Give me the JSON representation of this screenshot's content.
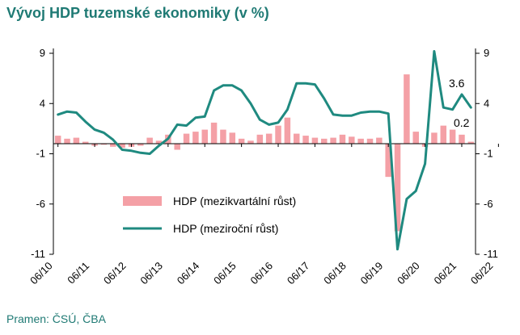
{
  "title": "Vývoj HDP tuzemské ekonomiky (v %)",
  "source": "Pramen: ČSÚ, ČBA",
  "colors": {
    "bars": "#f4a0a6",
    "line": "#1f8a80",
    "title": "#1f7a74",
    "axis": "#000000"
  },
  "chart_data": {
    "type": "bar+line",
    "x_tick_labels": [
      "06/10",
      "06/11",
      "06/12",
      "06/13",
      "06/14",
      "06/15",
      "06/16",
      "06/17",
      "06/18",
      "06/19",
      "06/20",
      "06/21",
      "06/22"
    ],
    "y_ticks": [
      "9",
      "4",
      "-1",
      "-6",
      "-11"
    ],
    "ylim": [
      -11,
      9
    ],
    "legend": [
      {
        "label": "HDP (mezikvartální růst)",
        "kind": "bar"
      },
      {
        "label": "HDP (meziroční růst)",
        "kind": "line"
      }
    ],
    "series": [
      {
        "name": "HDP (mezikvartální růst)",
        "kind": "bar",
        "values": [
          0.8,
          0.5,
          0.6,
          0.2,
          -0.2,
          -0.1,
          -0.3,
          -0.4,
          -0.3,
          -0.2,
          0.6,
          0.3,
          0.9,
          -0.6,
          1.0,
          1.2,
          1.4,
          2.1,
          1.4,
          1.1,
          0.5,
          0.3,
          0.9,
          1.0,
          1.8,
          2.6,
          1.0,
          0.8,
          0.6,
          0.5,
          0.6,
          0.9,
          0.7,
          0.5,
          0.5,
          0.6,
          -3.3,
          -8.7,
          6.9,
          1.2,
          -0.3,
          1.1,
          1.8,
          1.4,
          0.9,
          0.2
        ]
      },
      {
        "name": "HDP (meziroční růst)",
        "kind": "line",
        "values": [
          2.9,
          3.2,
          3.1,
          2.2,
          1.4,
          1.1,
          0.4,
          -0.6,
          -0.7,
          -0.9,
          -1.0,
          -0.2,
          0.5,
          1.9,
          1.8,
          2.6,
          2.7,
          5.3,
          5.8,
          5.8,
          5.3,
          4.0,
          2.4,
          1.9,
          2.1,
          3.4,
          6.0,
          6.0,
          5.9,
          4.5,
          2.9,
          2.8,
          2.8,
          3.1,
          3.2,
          3.2,
          3.0,
          -10.5,
          -5.5,
          -4.7,
          -2.0,
          9.2,
          3.6,
          3.4,
          4.9,
          3.6
        ]
      }
    ],
    "data_labels": [
      "3.6",
      "0.2"
    ]
  }
}
